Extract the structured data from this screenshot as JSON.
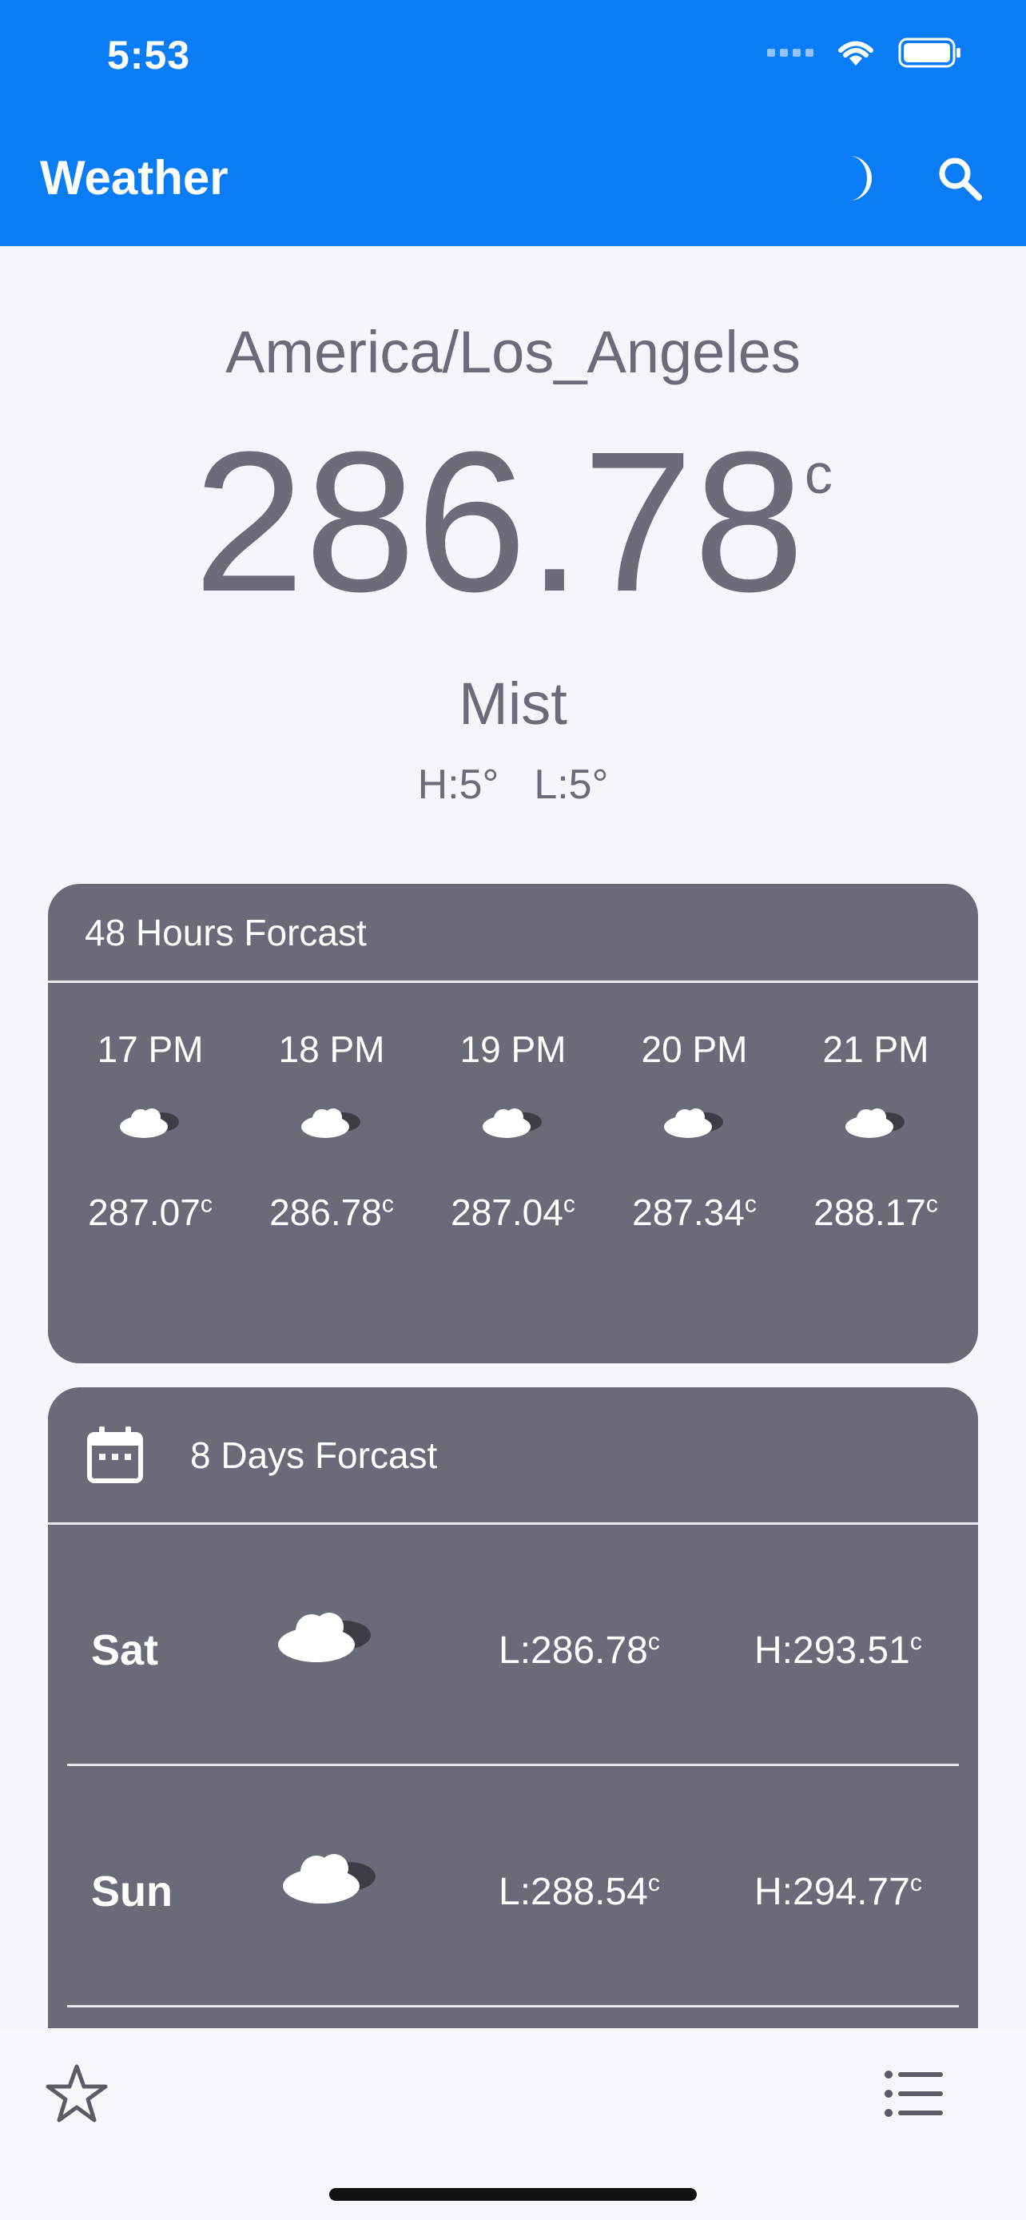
{
  "status_bar": {
    "time": "5:53"
  },
  "appbar": {
    "title": "Weather",
    "icons": [
      "moon-icon",
      "search-icon"
    ]
  },
  "current": {
    "location": "America/Los_Angeles",
    "temperature": "286.78",
    "unit": "c",
    "condition": "Mist",
    "high": "H:5°",
    "low": "L:5°"
  },
  "hourly": {
    "title": "48 Hours Forcast",
    "items": [
      {
        "time": "17 PM",
        "temp": "287.07",
        "unit": "c",
        "icon": "cloud-icon"
      },
      {
        "time": "18 PM",
        "temp": "286.78",
        "unit": "c",
        "icon": "cloud-icon"
      },
      {
        "time": "19 PM",
        "temp": "287.04",
        "unit": "c",
        "icon": "cloud-icon"
      },
      {
        "time": "20 PM",
        "temp": "287.34",
        "unit": "c",
        "icon": "cloud-icon"
      },
      {
        "time": "21 PM",
        "temp": "288.17",
        "unit": "c",
        "icon": "cloud-icon"
      }
    ]
  },
  "daily": {
    "title": "8 Days Forcast",
    "icon": "calendar-icon",
    "items": [
      {
        "day": "Sat",
        "low": "L:286.78",
        "high": "H:293.51",
        "unit": "c",
        "icon": "cloud-icon"
      },
      {
        "day": "Sun",
        "low": "L:288.54",
        "high": "H:294.77",
        "unit": "c",
        "icon": "cloud-icon"
      }
    ]
  },
  "bottom_bar": {
    "icons": [
      "star-icon",
      "list-icon"
    ]
  }
}
